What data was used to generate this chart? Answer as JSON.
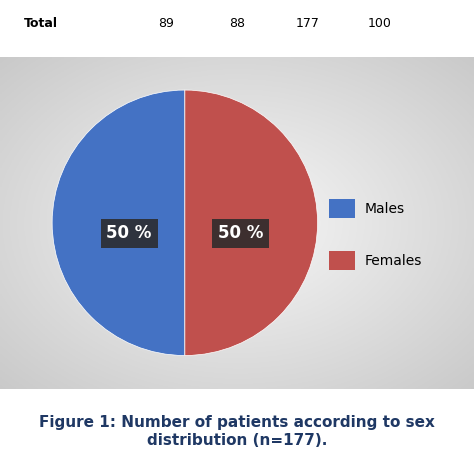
{
  "slices": [
    50,
    50
  ],
  "labels": [
    "Males",
    "Females"
  ],
  "colors": [
    "#4472C4",
    "#C0504D"
  ],
  "pct_labels": [
    "50 %",
    "50 %"
  ],
  "legend_labels": [
    "Males",
    "Females"
  ],
  "legend_colors": [
    "#4472C4",
    "#C0504D"
  ],
  "label_box_color": "#2B2B2B",
  "label_text_color": "#FFFFFF",
  "label_fontsize": 12,
  "label_fontweight": "bold",
  "figure_caption": "Figure 1: Number of patients according to sex\ndistribution (n=177).",
  "caption_color": "#1F3864",
  "caption_fontsize": 11,
  "startangle": 90,
  "fig_bg": "#FFFFFF",
  "top_table_bg": "#C5D9F1"
}
